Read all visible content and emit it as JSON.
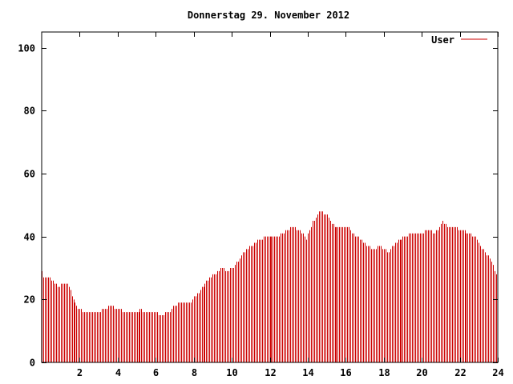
{
  "chart_data": {
    "type": "bar",
    "title": "Donnerstag 29. November 2012",
    "xlabel": "",
    "ylabel": "",
    "xlim": [
      0,
      24
    ],
    "ylim": [
      0,
      105
    ],
    "x_ticks": [
      2,
      4,
      6,
      8,
      10,
      12,
      14,
      16,
      18,
      20,
      22,
      24
    ],
    "y_ticks": [
      0,
      20,
      40,
      60,
      80,
      100
    ],
    "grid": false,
    "legend": "top-right",
    "bar_color": "#cc0000",
    "series": [
      {
        "name": "User",
        "anchors": [
          [
            0.0,
            29
          ],
          [
            0.1,
            27
          ],
          [
            0.4,
            27
          ],
          [
            0.7,
            25
          ],
          [
            0.9,
            24
          ],
          [
            1.1,
            25
          ],
          [
            1.3,
            25
          ],
          [
            1.45,
            24
          ],
          [
            1.6,
            21
          ],
          [
            1.8,
            18
          ],
          [
            2.0,
            17
          ],
          [
            2.2,
            16
          ],
          [
            3.0,
            16
          ],
          [
            3.3,
            17
          ],
          [
            3.6,
            18
          ],
          [
            4.0,
            17
          ],
          [
            4.4,
            16
          ],
          [
            5.0,
            16
          ],
          [
            5.2,
            17
          ],
          [
            5.4,
            16
          ],
          [
            5.9,
            16
          ],
          [
            6.3,
            15
          ],
          [
            6.7,
            16
          ],
          [
            6.9,
            18
          ],
          [
            7.3,
            19
          ],
          [
            7.8,
            19
          ],
          [
            8.2,
            22
          ],
          [
            8.7,
            26
          ],
          [
            9.1,
            28
          ],
          [
            9.5,
            30
          ],
          [
            9.8,
            29
          ],
          [
            10.2,
            31
          ],
          [
            10.6,
            35
          ],
          [
            11.0,
            37
          ],
          [
            11.4,
            39
          ],
          [
            11.8,
            40
          ],
          [
            12.4,
            40
          ],
          [
            12.7,
            41
          ],
          [
            13.2,
            43
          ],
          [
            13.6,
            42
          ],
          [
            13.9,
            39
          ],
          [
            14.2,
            44
          ],
          [
            14.6,
            48
          ],
          [
            15.0,
            47
          ],
          [
            15.2,
            44
          ],
          [
            15.6,
            43
          ],
          [
            16.1,
            43
          ],
          [
            16.4,
            41
          ],
          [
            16.8,
            39
          ],
          [
            17.1,
            37
          ],
          [
            17.4,
            36
          ],
          [
            17.8,
            37
          ],
          [
            18.2,
            35
          ],
          [
            18.6,
            38
          ],
          [
            19.1,
            40
          ],
          [
            19.5,
            41
          ],
          [
            19.9,
            41
          ],
          [
            20.3,
            42
          ],
          [
            20.7,
            41
          ],
          [
            21.1,
            45
          ],
          [
            21.3,
            43
          ],
          [
            21.7,
            43
          ],
          [
            22.0,
            42
          ],
          [
            22.5,
            41
          ],
          [
            22.8,
            40
          ],
          [
            23.2,
            36
          ],
          [
            23.6,
            33
          ],
          [
            23.9,
            28
          ],
          [
            24.0,
            27
          ]
        ]
      }
    ]
  }
}
